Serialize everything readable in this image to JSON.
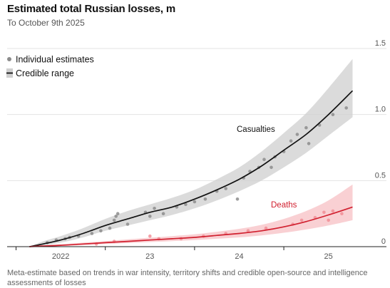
{
  "header": {
    "title": "Estimated total Russian losses, m",
    "subtitle": "To October 9th 2025"
  },
  "footnote": "Meta-estimate based on trends in war intensity, territory shifts and credible open-source and intelligence assessments of losses",
  "colors": {
    "casualties_line": "#111111",
    "casualties_band": "#cfcfcf",
    "deaths_line": "#d1202f",
    "deaths_band": "#f4a9ae",
    "casualties_dots": "#8c8c8c",
    "deaths_dots": "#f08a92",
    "grid": "#e3e3e3"
  },
  "chart_data": {
    "type": "line",
    "title": "Estimated total Russian losses, m",
    "subtitle": "To October 9th 2025",
    "ylim": [
      0,
      1.5
    ],
    "xlim": [
      2021.9,
      2025.95
    ],
    "y_ticks": [
      {
        "value": 0,
        "label": "0"
      },
      {
        "value": 0.5,
        "label": "0.5"
      },
      {
        "value": 1.0,
        "label": "1.0"
      },
      {
        "value": 1.5,
        "label": "1.5"
      }
    ],
    "x_ticks": [
      {
        "value": 2022.5,
        "label": "2022"
      },
      {
        "value": 2023.5,
        "label": "23"
      },
      {
        "value": 2024.5,
        "label": "24"
      },
      {
        "value": 2025.5,
        "label": "25"
      }
    ],
    "grid": true,
    "legend": {
      "placement": "top-left",
      "items": [
        {
          "label": "Individual estimates",
          "marker": "dot"
        },
        {
          "label": "Credible range",
          "marker": "line-with-band"
        }
      ]
    },
    "series": [
      {
        "name": "Casualties",
        "x": [
          2022.15,
          2022.3,
          2022.5,
          2022.75,
          2023.0,
          2023.25,
          2023.5,
          2023.75,
          2024.0,
          2024.25,
          2024.5,
          2024.75,
          2025.0,
          2025.25,
          2025.5,
          2025.77
        ],
        "y": [
          0.0,
          0.02,
          0.05,
          0.1,
          0.16,
          0.21,
          0.26,
          0.3,
          0.36,
          0.43,
          0.51,
          0.61,
          0.73,
          0.85,
          1.0,
          1.18
        ],
        "lower": [
          0.0,
          0.01,
          0.03,
          0.07,
          0.12,
          0.16,
          0.2,
          0.24,
          0.29,
          0.35,
          0.42,
          0.5,
          0.6,
          0.71,
          0.84,
          0.98
        ],
        "upper": [
          0.0,
          0.04,
          0.08,
          0.14,
          0.21,
          0.27,
          0.32,
          0.37,
          0.43,
          0.51,
          0.6,
          0.72,
          0.86,
          1.01,
          1.2,
          1.42
        ],
        "estimates": [
          [
            2022.35,
            0.03
          ],
          [
            2022.45,
            0.05
          ],
          [
            2022.55,
            0.06
          ],
          [
            2022.6,
            0.07
          ],
          [
            2022.7,
            0.08
          ],
          [
            2022.85,
            0.1
          ],
          [
            2022.95,
            0.12
          ],
          [
            2023.05,
            0.14
          ],
          [
            2023.1,
            0.2
          ],
          [
            2023.12,
            0.23
          ],
          [
            2023.14,
            0.25
          ],
          [
            2023.25,
            0.17
          ],
          [
            2023.45,
            0.26
          ],
          [
            2023.5,
            0.23
          ],
          [
            2023.55,
            0.29
          ],
          [
            2023.65,
            0.25
          ],
          [
            2023.8,
            0.3
          ],
          [
            2023.9,
            0.32
          ],
          [
            2024.0,
            0.34
          ],
          [
            2024.12,
            0.36
          ],
          [
            2024.25,
            0.42
          ],
          [
            2024.35,
            0.44
          ],
          [
            2024.48,
            0.36
          ],
          [
            2024.55,
            0.52
          ],
          [
            2024.62,
            0.57
          ],
          [
            2024.72,
            0.6
          ],
          [
            2024.78,
            0.66
          ],
          [
            2024.86,
            0.6
          ],
          [
            2024.9,
            0.68
          ],
          [
            2025.0,
            0.72
          ],
          [
            2025.08,
            0.8
          ],
          [
            2025.15,
            0.85
          ],
          [
            2025.25,
            0.9
          ],
          [
            2025.28,
            0.78
          ],
          [
            2025.4,
            0.92
          ],
          [
            2025.55,
            1.0
          ],
          [
            2025.7,
            1.05
          ]
        ]
      },
      {
        "name": "Deaths",
        "x": [
          2022.15,
          2022.3,
          2022.5,
          2022.75,
          2023.0,
          2023.25,
          2023.5,
          2023.75,
          2024.0,
          2024.25,
          2024.5,
          2024.75,
          2025.0,
          2025.25,
          2025.5,
          2025.77
        ],
        "y": [
          0.0,
          0.005,
          0.01,
          0.02,
          0.03,
          0.04,
          0.05,
          0.06,
          0.07,
          0.085,
          0.1,
          0.12,
          0.15,
          0.19,
          0.24,
          0.3
        ],
        "lower": [
          0.0,
          0.002,
          0.005,
          0.012,
          0.02,
          0.027,
          0.035,
          0.042,
          0.05,
          0.06,
          0.07,
          0.085,
          0.105,
          0.13,
          0.16,
          0.2
        ],
        "upper": [
          0.0,
          0.01,
          0.018,
          0.03,
          0.042,
          0.055,
          0.068,
          0.08,
          0.094,
          0.113,
          0.135,
          0.165,
          0.21,
          0.27,
          0.35,
          0.47
        ],
        "estimates": [
          [
            2022.9,
            0.02
          ],
          [
            2023.1,
            0.04
          ],
          [
            2023.5,
            0.08
          ],
          [
            2023.6,
            0.06
          ],
          [
            2023.85,
            0.06
          ],
          [
            2024.1,
            0.08
          ],
          [
            2024.35,
            0.1
          ],
          [
            2024.6,
            0.12
          ],
          [
            2024.8,
            0.14
          ],
          [
            2025.1,
            0.17
          ],
          [
            2025.2,
            0.2
          ],
          [
            2025.35,
            0.22
          ],
          [
            2025.45,
            0.26
          ],
          [
            2025.5,
            0.2
          ],
          [
            2025.55,
            0.27
          ],
          [
            2025.65,
            0.25
          ]
        ]
      }
    ],
    "annotations": [
      {
        "text": "Casualties",
        "series": "Casualties"
      },
      {
        "text": "Deaths",
        "series": "Deaths"
      }
    ]
  }
}
